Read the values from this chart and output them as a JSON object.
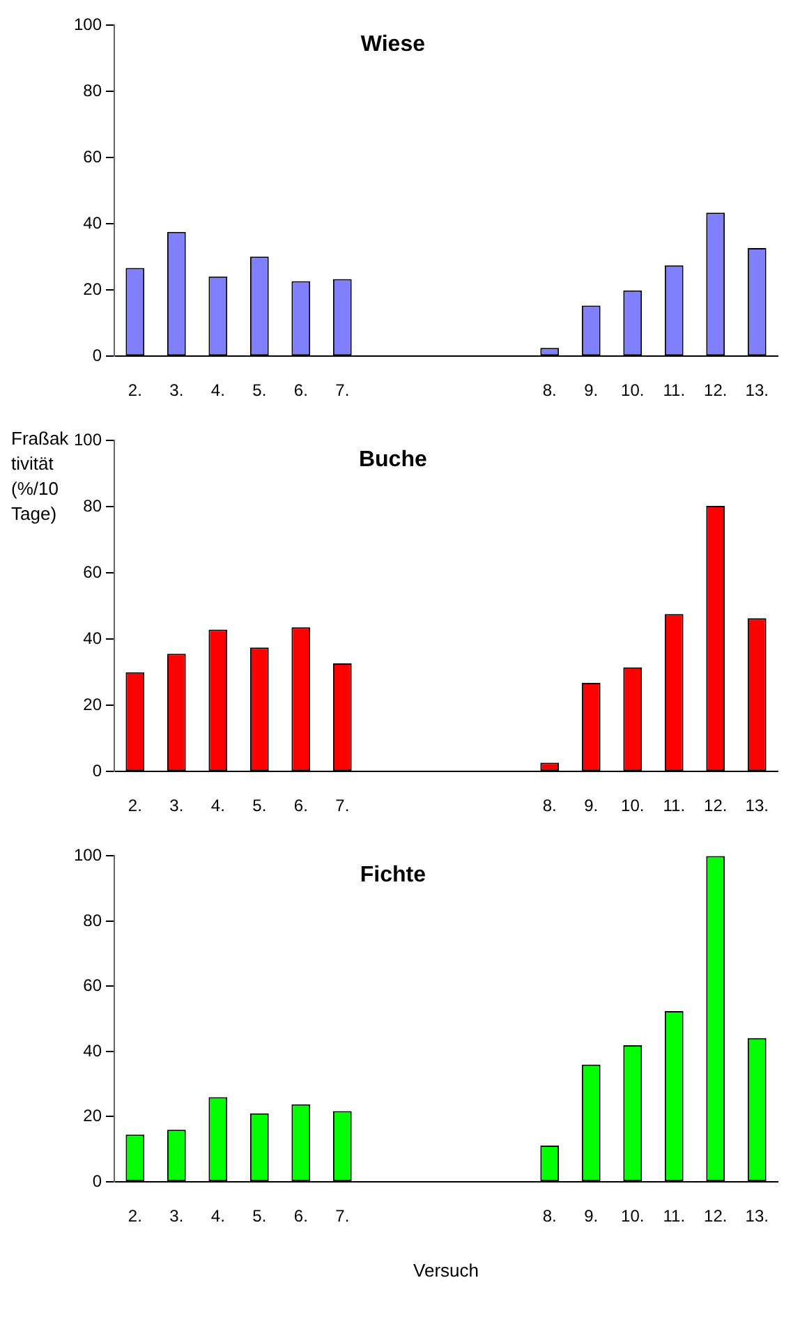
{
  "chart_data": [
    {
      "type": "bar",
      "title": "Wiese",
      "categories": [
        "2.",
        "3.",
        "4.",
        "5.",
        "6.",
        "7.",
        null,
        null,
        null,
        null,
        "8.",
        "9.",
        "10.",
        "11.",
        "12.",
        "13."
      ],
      "series": [
        {
          "color": "#8080ff",
          "values": [
            26.7,
            37.6,
            24.1,
            30.1,
            22.7,
            23.3,
            null,
            null,
            null,
            null,
            2.5,
            15.3,
            19.9,
            27.5,
            43.4,
            32.7
          ]
        }
      ],
      "ylim": [
        0,
        100
      ],
      "yticks": [
        0,
        20,
        40,
        60,
        80,
        100
      ],
      "grid": false,
      "legend": false
    },
    {
      "type": "bar",
      "title": "Buche",
      "ylabel": "Fraßaktivität (%/10 Tage)",
      "categories": [
        "2.",
        "3.",
        "4.",
        "5.",
        "6.",
        "7.",
        null,
        null,
        null,
        null,
        "8.",
        "9.",
        "10.",
        "11.",
        "12.",
        "13."
      ],
      "series": [
        {
          "color": "#ff0000",
          "values": [
            30,
            35.6,
            42.9,
            37.5,
            43.6,
            32.7,
            null,
            null,
            null,
            null,
            2.7,
            26.8,
            31.5,
            47.6,
            80.3,
            46.3
          ]
        }
      ],
      "ylim": [
        0,
        100
      ],
      "yticks": [
        0,
        20,
        40,
        60,
        80,
        100
      ],
      "grid": false,
      "legend": false
    },
    {
      "type": "bar",
      "title": "Fichte",
      "xlabel": "Versuch",
      "categories": [
        "2.",
        "3.",
        "4.",
        "5.",
        "6.",
        "7.",
        null,
        null,
        null,
        null,
        "8.",
        "9.",
        "10.",
        "11.",
        "12.",
        "13."
      ],
      "series": [
        {
          "color": "#00ff00",
          "values": [
            14.5,
            16,
            26,
            21,
            23.8,
            21.7,
            null,
            null,
            null,
            null,
            11.1,
            36,
            41.9,
            52.4,
            100,
            44.1
          ]
        }
      ],
      "ylim": [
        0,
        100
      ],
      "yticks": [
        0,
        20,
        40,
        60,
        80,
        100
      ],
      "grid": false,
      "legend": false
    }
  ]
}
